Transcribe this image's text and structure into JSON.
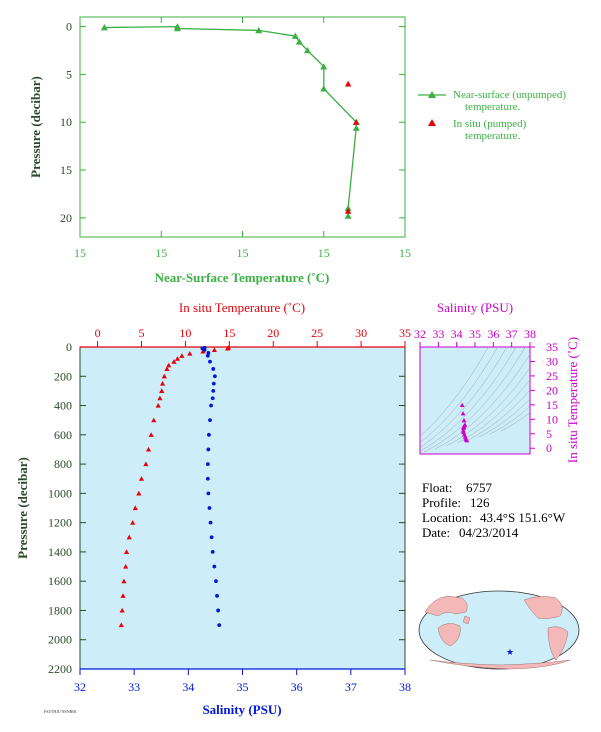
{
  "colors": {
    "green": "#3cb043",
    "red": "#e8000b",
    "blue": "#0018d8",
    "magenta": "#cc00cc",
    "dark_green": "#2b4a2b",
    "lightblue_fill": "#cdeef8",
    "land": "#f4b8b8",
    "ocean": "#cdeef8"
  },
  "info": {
    "float_label": "Float:",
    "float_value": "6757",
    "profile_label": "Profile:",
    "profile_value": "126",
    "location_label": "Location:",
    "location_value": "43.4°S  151.6°W",
    "date_label": "Date:",
    "date_value": "04/23/2014",
    "footer_tag": "FSI/THJU NSNR06"
  },
  "chart_data": [
    {
      "id": "near_surface",
      "type": "scatter",
      "xlabel": "Near-Surface Temperature (˚C)",
      "ylabel": "Pressure (decibar)",
      "xlim": [
        15,
        15.4
      ],
      "ylim": [
        22,
        -1
      ],
      "x_ticks": [
        {
          "value": 15.0,
          "label": "15"
        },
        {
          "value": 15.1,
          "label": "15"
        },
        {
          "value": 15.2,
          "label": "15"
        },
        {
          "value": 15.3,
          "label": "15"
        },
        {
          "value": 15.4,
          "label": "15"
        }
      ],
      "y_ticks": [
        0,
        5,
        10,
        15,
        20
      ],
      "legend": [
        {
          "label": "Near-surface (unpumped) temperature.",
          "line1": "Near-surface (unpumped)",
          "line2": "temperature.",
          "color": "#3cb043",
          "marker": "triangle-line"
        },
        {
          "label": "In situ (pumped) temperature.",
          "line1": "In situ (pumped)",
          "line2": "temperature.",
          "color": "#e8000b",
          "marker": "triangle"
        }
      ],
      "series": [
        {
          "name": "Near-surface (unpumped) temperature.",
          "x": [
            15.03,
            15.12,
            15.12,
            15.22,
            15.265,
            15.27,
            15.28,
            15.3,
            15.3,
            15.34,
            15.34,
            15.33,
            15.33
          ],
          "y": [
            0.1,
            0.0,
            0.2,
            0.4,
            1.0,
            1.6,
            2.5,
            4.2,
            6.5,
            10.0,
            10.6,
            19.0,
            19.8
          ]
        },
        {
          "name": "In situ (pumped) temperature.",
          "x": [
            15.33,
            15.34,
            15.33
          ],
          "y": [
            6.0,
            10.0,
            19.3
          ]
        }
      ]
    },
    {
      "id": "profile",
      "type": "scatter",
      "title": "In situ Temperature (˚C)",
      "xlabel": "Salinity (PSU)",
      "ylabel": "Pressure (decibar)",
      "temp_lim": [
        -2,
        35
      ],
      "sal_lim": [
        32,
        38
      ],
      "ylim": [
        2200,
        0
      ],
      "temp_ticks": [
        0,
        5,
        10,
        15,
        20,
        25,
        30,
        35
      ],
      "sal_ticks": [
        32,
        33,
        34,
        35,
        36,
        37,
        38
      ],
      "p_ticks": [
        0,
        200,
        400,
        600,
        800,
        1000,
        1200,
        1400,
        1600,
        1800,
        2000,
        2200
      ],
      "temperature": {
        "p": [
          5,
          10,
          20,
          30,
          45,
          60,
          80,
          100,
          125,
          150,
          200,
          250,
          300,
          350,
          400,
          500,
          600,
          700,
          800,
          900,
          1000,
          1100,
          1200,
          1300,
          1400,
          1500,
          1600,
          1700,
          1800,
          1900
        ],
        "t": [
          14.9,
          14.8,
          13.3,
          12.0,
          10.5,
          9.6,
          9.1,
          8.7,
          8.1,
          7.9,
          7.6,
          7.4,
          7.3,
          7.1,
          6.9,
          6.4,
          6.1,
          5.8,
          5.5,
          5.0,
          4.7,
          4.3,
          4.0,
          3.6,
          3.3,
          3.2,
          3.0,
          2.9,
          2.8,
          2.7
        ]
      },
      "salinity": {
        "p": [
          5,
          10,
          20,
          40,
          60,
          100,
          150,
          200,
          250,
          300,
          350,
          400,
          500,
          600,
          700,
          800,
          900,
          1000,
          1100,
          1200,
          1300,
          1400,
          1500,
          1600,
          1700,
          1800,
          1900
        ],
        "s": [
          34.3,
          34.26,
          34.3,
          34.37,
          34.36,
          34.4,
          34.46,
          34.49,
          34.47,
          34.46,
          34.45,
          34.42,
          34.4,
          34.38,
          34.37,
          34.36,
          34.36,
          34.37,
          34.39,
          34.41,
          34.43,
          34.45,
          34.48,
          34.51,
          34.53,
          34.55,
          34.57
        ]
      }
    },
    {
      "id": "ts_diagram",
      "type": "scatter",
      "title": "Salinity (PSU)",
      "ylabel": "In situ Temperature (˚C)",
      "xlim": [
        32,
        38
      ],
      "ylim": [
        -2,
        35
      ],
      "x_ticks": [
        32,
        33,
        34,
        35,
        36,
        37,
        38
      ],
      "y_ticks": [
        0,
        5,
        10,
        15,
        20,
        25,
        30,
        35
      ],
      "points": {
        "s": [
          34.3,
          34.35,
          34.4,
          34.45,
          34.4,
          34.38,
          34.37,
          34.36,
          34.38,
          34.42,
          34.47,
          34.5,
          34.53,
          34.56
        ],
        "t": [
          14.9,
          12.0,
          9.6,
          8.1,
          7.6,
          7.3,
          6.9,
          6.1,
          5.5,
          4.7,
          4.0,
          3.3,
          3.0,
          2.7
        ]
      }
    }
  ]
}
